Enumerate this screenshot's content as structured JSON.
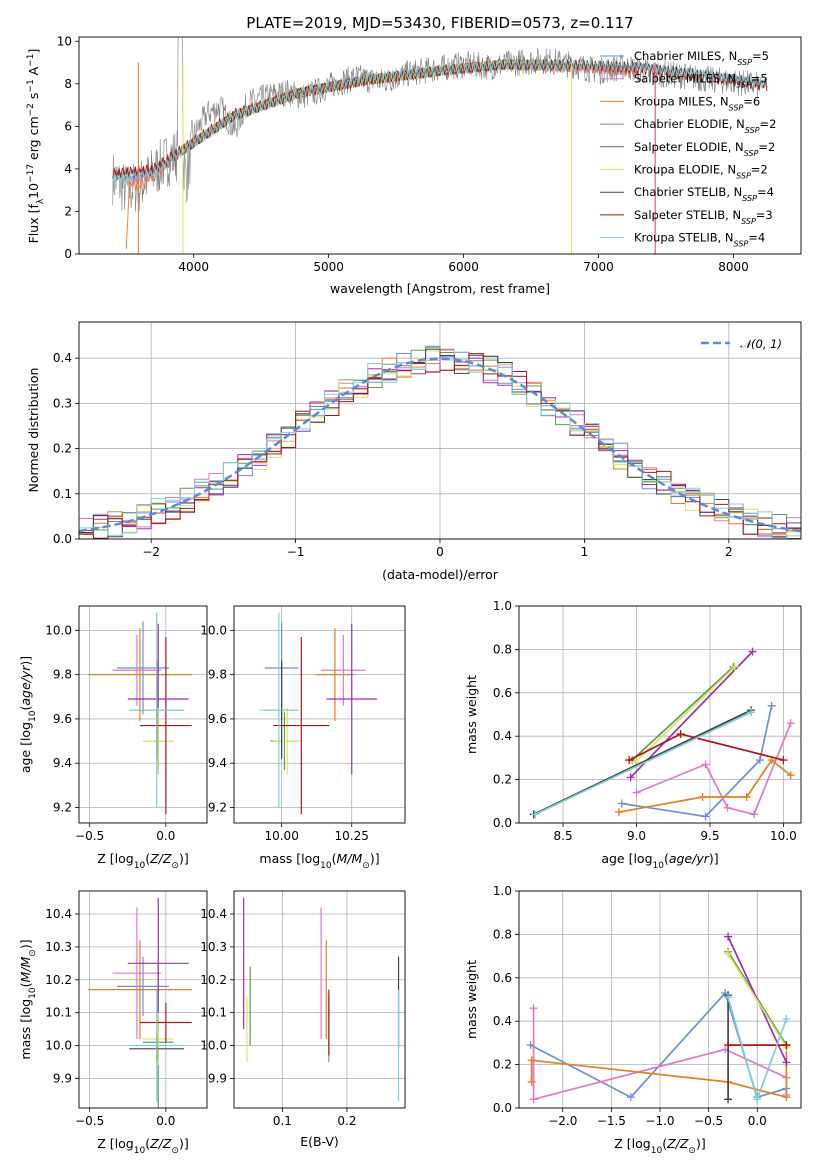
{
  "title": "PLATE=2019, MJD=53430, FIBERID=0573, z=0.117",
  "colors": {
    "Chabrier MILES": "#6a8fd8",
    "Salpeter MILES": "#e377c2",
    "Kroupa MILES": "#e67e22",
    "Chabrier ELODIE": "#5d9c5d",
    "Salpeter ELODIE": "#9b30b7",
    "Kroupa ELODIE": "#d9e65c",
    "Chabrier STELIB": "#444444",
    "Salpeter STELIB": "#b01515",
    "Kroupa STELIB": "#7ccfd6",
    "data": "#7f7f7f",
    "normal": "#5b8ad8"
  },
  "chart_data": [
    {
      "type": "line",
      "xlabel": "wavelength [Angstrom, rest frame]",
      "ylabel": "Flux [f_λ 10^-17 erg cm^-2 s^-1 A^-1]",
      "xlim": [
        3150,
        8500
      ],
      "ylim": [
        0,
        10.2
      ],
      "xticks": [
        4000,
        5000,
        6000,
        7000,
        8000
      ],
      "yticks": [
        0,
        2,
        4,
        6,
        8,
        10
      ],
      "grid": false,
      "legend_position": "lower-right",
      "data_spectrum": {
        "color": "data",
        "x": [
          3400,
          3500,
          3600,
          3700,
          3800,
          3900,
          3950,
          4000,
          4100,
          4200,
          4300,
          4400,
          4500,
          4600,
          4700,
          4800,
          4900,
          5000,
          5200,
          5400,
          5600,
          5800,
          6000,
          6200,
          6400,
          6600,
          6800,
          7000,
          7200,
          7400,
          7600,
          7800,
          8000,
          8200
        ],
        "y": [
          3.6,
          3.0,
          3.2,
          3.8,
          4.4,
          4.8,
          3.6,
          5.6,
          6.6,
          6.9,
          5.8,
          7.1,
          7.3,
          7.5,
          7.6,
          7.4,
          7.6,
          7.9,
          8.3,
          8.1,
          8.5,
          8.7,
          8.9,
          8.8,
          9.0,
          9.1,
          8.9,
          8.6,
          8.8,
          8.5,
          8.4,
          8.2,
          8.1,
          7.9
        ]
      },
      "series": [
        {
          "name": "Chabrier MILES",
          "nssp": 5,
          "color": "Chabrier MILES",
          "x": [
            3520,
            3700,
            3950,
            4300,
            4800,
            5300,
            5800,
            6300,
            6800,
            7300
          ],
          "y": [
            3.5,
            3.8,
            5.0,
            6.5,
            7.6,
            8.2,
            8.6,
            8.9,
            8.8,
            8.6
          ]
        },
        {
          "name": "Salpeter MILES",
          "nssp": 5,
          "color": "Salpeter MILES",
          "x": [
            3520,
            3700,
            3950,
            4300,
            4800,
            5300,
            5800,
            6300,
            6800,
            7300
          ],
          "y": [
            3.4,
            3.7,
            5.0,
            6.5,
            7.6,
            8.3,
            8.6,
            8.9,
            8.8,
            8.6
          ]
        },
        {
          "name": "Kroupa MILES",
          "nssp": 6,
          "color": "Kroupa MILES",
          "x": [
            3500,
            3520,
            3600,
            3700,
            3950,
            4300,
            4800,
            5300,
            5800,
            6300,
            6800,
            7300
          ],
          "y": [
            0,
            3.3,
            3.2,
            3.7,
            5.0,
            6.5,
            7.6,
            8.2,
            8.6,
            8.9,
            8.8,
            8.6
          ]
        },
        {
          "name": "Chabrier ELODIE",
          "nssp": 2,
          "color": "Chabrier ELODIE",
          "x": [
            3900,
            4300,
            4800,
            5300,
            5800,
            6300,
            6800
          ],
          "y": [
            4.8,
            6.5,
            7.6,
            8.2,
            8.6,
            8.9,
            8.8
          ]
        },
        {
          "name": "Salpeter ELODIE",
          "nssp": 2,
          "color": "Salpeter ELODIE",
          "x": [
            3900,
            4300,
            4800,
            5300,
            5800,
            6300,
            6800
          ],
          "y": [
            4.8,
            6.5,
            7.6,
            8.2,
            8.6,
            8.9,
            8.8
          ]
        },
        {
          "name": "Kroupa ELODIE",
          "nssp": 2,
          "color": "Kroupa ELODIE",
          "x": [
            3900,
            4300,
            4800,
            5300,
            5800,
            6300,
            6800
          ],
          "y": [
            4.8,
            6.5,
            7.6,
            8.2,
            8.6,
            8.9,
            8.8
          ]
        },
        {
          "name": "Chabrier STELIB",
          "nssp": 4,
          "color": "Chabrier STELIB",
          "x": [
            3400,
            3700,
            3950,
            4300,
            4800,
            5300,
            5800,
            6300,
            6800,
            7300,
            7800,
            8250
          ],
          "y": [
            3.7,
            3.9,
            5.0,
            6.5,
            7.6,
            8.2,
            8.6,
            8.9,
            8.9,
            8.8,
            8.4,
            8.0
          ]
        },
        {
          "name": "Salpeter STELIB",
          "nssp": 3,
          "color": "Salpeter STELIB",
          "x": [
            3400,
            3700,
            3950,
            4300,
            4800,
            5300,
            5800,
            6300,
            6800,
            7300,
            7800,
            8250
          ],
          "y": [
            3.8,
            4.0,
            5.1,
            6.6,
            7.6,
            8.2,
            8.6,
            8.9,
            8.9,
            8.7,
            8.3,
            7.9
          ]
        },
        {
          "name": "Kroupa STELIB",
          "nssp": 4,
          "color": "Kroupa STELIB",
          "x": [
            3400,
            3700,
            3950,
            4300,
            4800,
            5300,
            5800,
            6300,
            6800,
            7300,
            7800,
            8250
          ],
          "y": [
            3.5,
            3.8,
            5.0,
            6.5,
            7.6,
            8.3,
            8.6,
            8.9,
            8.9,
            8.8,
            8.4,
            8.0
          ]
        }
      ]
    },
    {
      "type": "line",
      "xlabel": "(data-model)/error",
      "ylabel": "Normed distribution",
      "xlim": [
        -2.5,
        2.5
      ],
      "ylim": [
        0,
        0.48
      ],
      "xticks": [
        -2,
        -1,
        0,
        1,
        2
      ],
      "yticks": [
        0.0,
        0.1,
        0.2,
        0.3,
        0.4
      ],
      "grid": true,
      "legend_position": "top-right",
      "normal_curve": {
        "label": "𝒩(0, 1)",
        "color": "normal",
        "mean": 0,
        "sigma": 1
      },
      "histogram_bin_width": 0.1
    },
    {
      "type": "scatter",
      "xlabel": "Z [log10(Z/Z⊙)]",
      "ylabel": "age [log10(age/yr)]",
      "xlim": [
        -0.57,
        0.27
      ],
      "ylim": [
        9.13,
        10.11
      ],
      "xticks": [
        -0.5,
        0.0
      ],
      "yticks": [
        9.2,
        9.4,
        9.6,
        9.8,
        10.0
      ],
      "grid": true,
      "points": [
        {
          "model": "Chabrier MILES",
          "x": -0.15,
          "xerr": 0.17,
          "y": 9.83,
          "yerr": 0.21
        },
        {
          "model": "Salpeter MILES",
          "x": -0.19,
          "xerr": 0.16,
          "y": 9.82,
          "yerr": 0.16
        },
        {
          "model": "Kroupa MILES",
          "x": -0.17,
          "xerr": 0.34,
          "y": 9.8,
          "yerr": 0.21
        },
        {
          "model": "Chabrier ELODIE",
          "x": -0.05,
          "xerr": 0.1,
          "y": 9.5,
          "yerr": 0.13
        },
        {
          "model": "Salpeter ELODIE",
          "x": -0.05,
          "xerr": 0.2,
          "y": 9.69,
          "yerr": 0.34
        },
        {
          "model": "Kroupa ELODIE",
          "x": -0.05,
          "xerr": 0.1,
          "y": 9.5,
          "yerr": 0.15
        },
        {
          "model": "Chabrier STELIB",
          "x": -0.06,
          "xerr": 0.18,
          "y": 9.64,
          "yerr": 0.22
        },
        {
          "model": "Salpeter STELIB",
          "x": 0.0,
          "xerr": 0.17,
          "y": 9.57,
          "yerr": 0.4
        },
        {
          "model": "Kroupa STELIB",
          "x": -0.06,
          "xerr": 0.18,
          "y": 9.64,
          "yerr": 0.44
        }
      ]
    },
    {
      "type": "scatter",
      "xlabel": "mass [log10(M/M⊙)]",
      "ylabel": "",
      "xlim": [
        9.83,
        10.44
      ],
      "ylim": [
        9.13,
        10.11
      ],
      "xticks": [
        10.0,
        10.25
      ],
      "yticks": [
        9.2,
        9.4,
        9.6,
        9.8,
        10.0
      ],
      "grid": true,
      "points": [
        {
          "model": "Chabrier MILES",
          "x": 10.0,
          "xerr": 0.06,
          "y": 9.83,
          "yerr": 0.21
        },
        {
          "model": "Salpeter MILES",
          "x": 10.22,
          "xerr": 0.08,
          "y": 9.82,
          "yerr": 0.16
        },
        {
          "model": "Kroupa MILES",
          "x": 10.19,
          "xerr": 0.07,
          "y": 9.8,
          "yerr": 0.21
        },
        {
          "model": "Chabrier ELODIE",
          "x": 10.01,
          "xerr": 0.05,
          "y": 9.5,
          "yerr": 0.13
        },
        {
          "model": "Salpeter ELODIE",
          "x": 10.25,
          "xerr": 0.09,
          "y": 9.69,
          "yerr": 0.34
        },
        {
          "model": "Kroupa ELODIE",
          "x": 10.02,
          "xerr": 0.05,
          "y": 9.5,
          "yerr": 0.15
        },
        {
          "model": "Chabrier STELIB",
          "x": 10.0,
          "xerr": 0.06,
          "y": 9.64,
          "yerr": 0.22
        },
        {
          "model": "Salpeter STELIB",
          "x": 10.07,
          "xerr": 0.1,
          "y": 9.57,
          "yerr": 0.4
        },
        {
          "model": "Kroupa STELIB",
          "x": 9.99,
          "xerr": 0.07,
          "y": 9.64,
          "yerr": 0.44
        }
      ]
    },
    {
      "type": "line",
      "xlabel": "age [log10(age/yr)]",
      "ylabel": "mass weight",
      "xlim": [
        8.2,
        10.12
      ],
      "ylim": [
        0.0,
        1.0
      ],
      "xticks": [
        8.5,
        9.0,
        9.5,
        10.0
      ],
      "yticks": [
        0.0,
        0.2,
        0.4,
        0.6,
        0.8,
        1.0
      ],
      "grid": true,
      "series": [
        {
          "model": "Chabrier MILES",
          "x": [
            8.9,
            9.47,
            9.84,
            9.92
          ],
          "y": [
            0.09,
            0.03,
            0.29,
            0.54
          ]
        },
        {
          "model": "Salpeter MILES",
          "x": [
            9.0,
            9.47,
            9.62,
            9.8,
            10.05
          ],
          "y": [
            0.14,
            0.27,
            0.07,
            0.04,
            0.46
          ]
        },
        {
          "model": "Kroupa MILES",
          "x": [
            8.88,
            9.45,
            9.75,
            9.92,
            10.05
          ],
          "y": [
            0.05,
            0.12,
            0.12,
            0.29,
            0.22
          ]
        },
        {
          "model": "Chabrier ELODIE",
          "x": [
            8.97,
            9.66
          ],
          "y": [
            0.29,
            0.72
          ]
        },
        {
          "model": "Salpeter ELODIE",
          "x": [
            8.96,
            9.79
          ],
          "y": [
            0.21,
            0.79
          ]
        },
        {
          "model": "Kroupa ELODIE",
          "x": [
            8.99,
            9.67
          ],
          "y": [
            0.28,
            0.72
          ]
        },
        {
          "model": "Chabrier STELIB",
          "x": [
            8.3,
            9.78
          ],
          "y": [
            0.04,
            0.52
          ]
        },
        {
          "model": "Salpeter STELIB",
          "x": [
            8.95,
            9.3,
            10.0
          ],
          "y": [
            0.29,
            0.41,
            0.29
          ]
        },
        {
          "model": "Kroupa STELIB",
          "x": [
            8.31,
            9.78
          ],
          "y": [
            0.04,
            0.51
          ]
        }
      ]
    },
    {
      "type": "scatter",
      "xlabel": "Z [log10(Z/Z⊙)]",
      "ylabel": "mass [log10(M/M⊙)]",
      "xlim": [
        -0.57,
        0.27
      ],
      "ylim": [
        9.81,
        10.47
      ],
      "xticks": [
        -0.5,
        0.0
      ],
      "yticks": [
        9.9,
        10.0,
        10.1,
        10.2,
        10.3,
        10.4
      ],
      "grid": true,
      "points": [
        {
          "model": "Chabrier MILES",
          "x": -0.15,
          "xerr": 0.17,
          "y": 10.18,
          "yerr": 0.09
        },
        {
          "model": "Salpeter MILES",
          "x": -0.19,
          "xerr": 0.16,
          "y": 10.22,
          "yerr": 0.2
        },
        {
          "model": "Kroupa MILES",
          "x": -0.17,
          "xerr": 0.34,
          "y": 10.17,
          "yerr": 0.15
        },
        {
          "model": "Chabrier ELODIE",
          "x": -0.05,
          "xerr": 0.1,
          "y": 10.01,
          "yerr": 0.24
        },
        {
          "model": "Salpeter ELODIE",
          "x": -0.05,
          "xerr": 0.2,
          "y": 10.25,
          "yerr": 0.2
        },
        {
          "model": "Kroupa ELODIE",
          "x": -0.05,
          "xerr": 0.1,
          "y": 10.02,
          "yerr": 0.08
        },
        {
          "model": "Chabrier STELIB",
          "x": -0.06,
          "xerr": 0.18,
          "y": 9.99,
          "yerr": 0.04
        },
        {
          "model": "Salpeter STELIB",
          "x": 0.0,
          "xerr": 0.17,
          "y": 10.07,
          "yerr": 0.06
        },
        {
          "model": "Kroupa STELIB",
          "x": -0.06,
          "xerr": 0.18,
          "y": 10.0,
          "yerr": 0.17
        }
      ]
    },
    {
      "type": "scatter",
      "xlabel": "E(B-V)",
      "ylabel": "",
      "xlim": [
        0.025,
        0.29
      ],
      "ylim": [
        9.81,
        10.47
      ],
      "xticks": [
        0.1,
        0.2
      ],
      "yticks": [
        9.9,
        10.0,
        10.1,
        10.2,
        10.3,
        10.4
      ],
      "grid": true,
      "points": [
        {
          "model": "Chabrier MILES",
          "x": 0.172,
          "y": 10.05,
          "yerr": 0.1
        },
        {
          "model": "Salpeter MILES",
          "x": 0.16,
          "y": 10.22,
          "yerr": 0.2
        },
        {
          "model": "Kroupa MILES",
          "x": 0.168,
          "y": 10.17,
          "yerr": 0.15
        },
        {
          "model": "Chabrier ELODIE",
          "x": 0.05,
          "y": 10.12,
          "yerr": 0.12
        },
        {
          "model": "Salpeter ELODIE",
          "x": 0.04,
          "y": 10.25,
          "yerr": 0.2
        },
        {
          "model": "Kroupa ELODIE",
          "x": 0.045,
          "y": 10.05,
          "yerr": 0.1
        },
        {
          "model": "Chabrier STELIB",
          "x": 0.28,
          "y": 10.13,
          "yerr": 0.14
        },
        {
          "model": "Salpeter STELIB",
          "x": 0.172,
          "y": 10.07,
          "yerr": 0.1
        },
        {
          "model": "Kroupa STELIB",
          "x": 0.28,
          "y": 10.0,
          "yerr": 0.17
        }
      ]
    },
    {
      "type": "line",
      "xlabel": "Z [log10(Z/Z⊙)]",
      "ylabel": "mass weight",
      "xlim": [
        -2.45,
        0.45
      ],
      "ylim": [
        0.0,
        1.0
      ],
      "xticks": [
        -2.0,
        -1.5,
        -1.0,
        -0.5,
        0.0
      ],
      "yticks": [
        0.0,
        0.2,
        0.4,
        0.6,
        0.8,
        1.0
      ],
      "grid": true,
      "series": [
        {
          "model": "Chabrier MILES",
          "x": [
            -2.33,
            -1.3,
            -0.33,
            0.0,
            0.3
          ],
          "y": [
            0.29,
            0.05,
            0.53,
            0.05,
            0.09
          ]
        },
        {
          "model": "Salpeter MILES",
          "x": [
            -2.3,
            -2.3,
            -0.33,
            0.3,
            0.3
          ],
          "y": [
            0.46,
            0.04,
            0.27,
            0.14,
            0.06
          ]
        },
        {
          "model": "Kroupa MILES",
          "x": [
            -2.32,
            -2.32,
            -0.3,
            0.3,
            0.3
          ],
          "y": [
            0.12,
            0.22,
            0.12,
            0.05,
            0.29
          ]
        },
        {
          "model": "Chabrier ELODIE",
          "x": [
            -0.3,
            0.3
          ],
          "y": [
            0.72,
            0.29
          ]
        },
        {
          "model": "Salpeter ELODIE",
          "x": [
            -0.3,
            0.3
          ],
          "y": [
            0.79,
            0.21
          ]
        },
        {
          "model": "Kroupa ELODIE",
          "x": [
            -0.3,
            0.3
          ],
          "y": [
            0.71,
            0.28
          ]
        },
        {
          "model": "Chabrier STELIB",
          "x": [
            -0.3,
            -0.3
          ],
          "y": [
            0.52,
            0.04
          ]
        },
        {
          "model": "Salpeter STELIB",
          "x": [
            -0.3,
            0.3
          ],
          "y": [
            0.29,
            0.29
          ]
        },
        {
          "model": "Kroupa STELIB",
          "x": [
            -0.3,
            0.0,
            0.3
          ],
          "y": [
            0.51,
            0.04,
            0.41
          ]
        }
      ]
    }
  ]
}
